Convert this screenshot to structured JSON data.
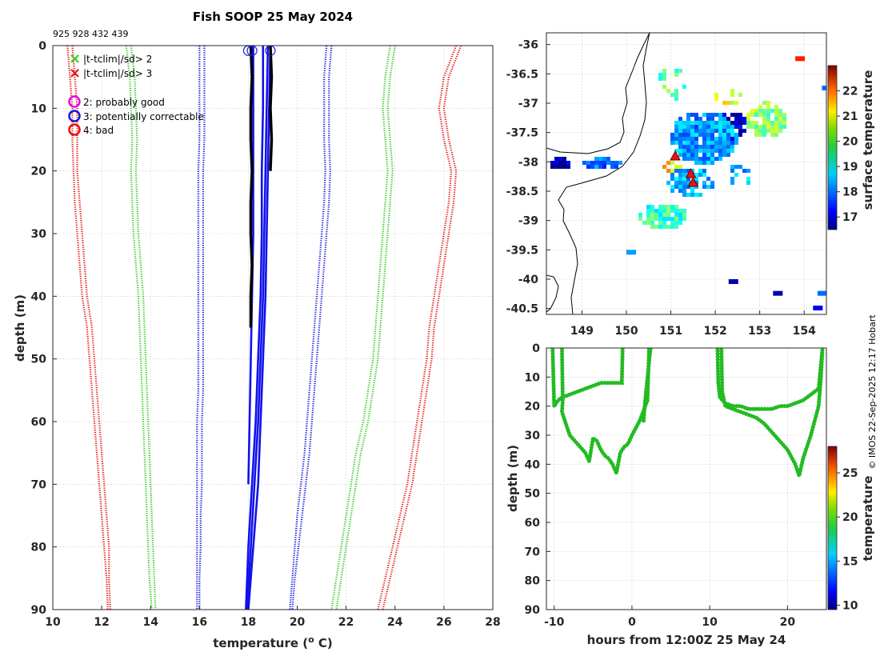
{
  "title": "Fish SOOP 25 May 2024",
  "instrument_ids": "925 928 432 439",
  "credit": "© IMOS 22-Sep-2025 12:17 Hobart",
  "colors": {
    "red": "#e8130f",
    "green": "#33cc22",
    "blue": "#1818e0",
    "black": "#000000",
    "magenta": "#e010e0",
    "profile_blue": "#1111ee",
    "track_green": "#22bb22"
  },
  "legend": {
    "items": [
      {
        "label": "|t-tclim|/sd> 2",
        "marker": "x",
        "color": "#33cc22"
      },
      {
        "label": "|t-tclim|/sd> 3",
        "marker": "x",
        "color": "#e8130f"
      },
      {
        "label": "2: probably good",
        "marker": "o",
        "color": "#e010e0"
      },
      {
        "label": "3: potentially correctable",
        "marker": "o",
        "color": "#1818e0"
      },
      {
        "label": "4: bad",
        "marker": "o",
        "color": "#e8130f"
      }
    ]
  },
  "chart_data": [
    {
      "type": "line",
      "name": "profile",
      "xlabel": "temperature (",
      "xlabel_sup": "o",
      "xlabel_tail": " C)",
      "ylabel": "depth (m)",
      "xlim": [
        10,
        28
      ],
      "ylim": [
        0,
        90
      ],
      "xticks": [
        "10",
        "12",
        "14",
        "16",
        "18",
        "20",
        "22",
        "24",
        "26",
        "28"
      ],
      "yticks": [
        "0",
        "10",
        "20",
        "30",
        "40",
        "50",
        "60",
        "70",
        "80",
        "90"
      ],
      "xtick_values": [
        10,
        12,
        14,
        16,
        18,
        20,
        22,
        24,
        26,
        28
      ],
      "ytick_values": [
        0,
        10,
        20,
        30,
        40,
        50,
        60,
        70,
        80,
        90
      ],
      "climatology_depths": [
        0,
        5,
        10,
        15,
        20,
        25,
        30,
        35,
        40,
        45,
        50,
        55,
        60,
        65,
        70,
        75,
        80,
        85,
        90
      ],
      "series": [
        {
          "name": "clim -3sd",
          "style": "dotted",
          "color": "#e8130f",
          "x": [
            10.8,
            10.9,
            11.0,
            11.0,
            11.0,
            11.1,
            11.2,
            11.3,
            11.4,
            11.6,
            11.7,
            11.8,
            11.9,
            12.0,
            12.1,
            12.2,
            12.3,
            12.3,
            12.35
          ]
        },
        {
          "name": "clim -3sd b",
          "style": "dotted",
          "color": "#e8130f",
          "x": [
            10.6,
            10.7,
            10.8,
            10.8,
            10.85,
            10.9,
            11.0,
            11.1,
            11.2,
            11.4,
            11.5,
            11.6,
            11.7,
            11.8,
            11.9,
            12.0,
            12.1,
            12.2,
            12.25
          ]
        },
        {
          "name": "clim -2sd",
          "style": "dotted",
          "color": "#33cc22",
          "x": [
            13.2,
            13.35,
            13.4,
            13.45,
            13.4,
            13.45,
            13.5,
            13.6,
            13.7,
            13.75,
            13.8,
            13.85,
            13.9,
            13.95,
            14.0,
            14.05,
            14.1,
            14.15,
            14.2
          ]
        },
        {
          "name": "clim -2sd b",
          "style": "dotted",
          "color": "#33cc22",
          "x": [
            13.0,
            13.15,
            13.2,
            13.25,
            13.2,
            13.25,
            13.3,
            13.4,
            13.5,
            13.55,
            13.6,
            13.65,
            13.7,
            13.75,
            13.8,
            13.85,
            13.9,
            13.95,
            14.05
          ]
        },
        {
          "name": "clim -1sd",
          "style": "dotted",
          "color": "#1818e0",
          "x": [
            16.2,
            16.2,
            16.2,
            16.2,
            16.15,
            16.15,
            16.15,
            16.15,
            16.15,
            16.15,
            16.15,
            16.15,
            16.1,
            16.1,
            16.1,
            16.05,
            16.05,
            16.0,
            16.0
          ]
        },
        {
          "name": "clim -1sd b",
          "style": "dotted",
          "color": "#1818e0",
          "x": [
            16.0,
            16.0,
            16.0,
            16.0,
            15.95,
            15.95,
            15.95,
            15.95,
            15.95,
            15.95,
            15.95,
            15.95,
            15.9,
            15.9,
            15.9,
            15.9,
            15.9,
            15.9,
            15.9
          ]
        },
        {
          "name": "clim +1sd",
          "style": "dotted",
          "color": "#1818e0",
          "x": [
            21.4,
            21.3,
            21.3,
            21.3,
            21.35,
            21.3,
            21.2,
            21.1,
            21.0,
            20.9,
            20.8,
            20.7,
            20.6,
            20.5,
            20.35,
            20.2,
            20.05,
            19.9,
            19.8
          ]
        },
        {
          "name": "clim +1sd b",
          "style": "dotted",
          "color": "#1818e0",
          "x": [
            21.2,
            21.1,
            21.1,
            21.1,
            21.15,
            21.1,
            21.0,
            20.9,
            20.8,
            20.7,
            20.6,
            20.5,
            20.4,
            20.3,
            20.15,
            20.0,
            19.9,
            19.8,
            19.7
          ]
        },
        {
          "name": "clim +2sd",
          "style": "dotted",
          "color": "#33cc22",
          "x": [
            24.0,
            23.8,
            23.7,
            23.8,
            23.9,
            23.8,
            23.7,
            23.6,
            23.5,
            23.4,
            23.3,
            23.1,
            22.9,
            22.6,
            22.4,
            22.2,
            22.0,
            21.8,
            21.6
          ]
        },
        {
          "name": "clim +2sd b",
          "style": "dotted",
          "color": "#33cc22",
          "x": [
            23.8,
            23.6,
            23.5,
            23.6,
            23.7,
            23.6,
            23.5,
            23.4,
            23.3,
            23.2,
            23.1,
            22.9,
            22.7,
            22.4,
            22.2,
            22.0,
            21.8,
            21.6,
            21.4
          ]
        },
        {
          "name": "clim +3sd",
          "style": "dotted",
          "color": "#e8130f",
          "x": [
            26.7,
            26.2,
            26.0,
            26.2,
            26.5,
            26.4,
            26.2,
            26.0,
            25.8,
            25.6,
            25.5,
            25.3,
            25.1,
            24.9,
            24.7,
            24.4,
            24.1,
            23.8,
            23.5
          ]
        },
        {
          "name": "clim +3sd b",
          "style": "dotted",
          "color": "#e8130f",
          "x": [
            26.5,
            26.0,
            25.8,
            26.0,
            26.3,
            26.2,
            26.0,
            25.8,
            25.6,
            25.4,
            25.3,
            25.1,
            24.9,
            24.7,
            24.5,
            24.2,
            23.9,
            23.6,
            23.3
          ]
        }
      ],
      "profiles": [
        {
          "name": "925",
          "color": "#1111ee",
          "depth": [
            0,
            10,
            20,
            30,
            40,
            50,
            60,
            70,
            80,
            90
          ],
          "x": [
            18.9,
            18.85,
            18.8,
            18.75,
            18.7,
            18.6,
            18.5,
            18.4,
            18.2,
            18.0
          ]
        },
        {
          "name": "928",
          "color": "#1111ee",
          "depth": [
            0,
            10,
            20,
            30,
            40,
            50,
            60,
            70,
            80,
            90
          ],
          "x": [
            18.8,
            18.75,
            18.7,
            18.65,
            18.6,
            18.5,
            18.4,
            18.25,
            18.1,
            17.95
          ]
        },
        {
          "name": "432",
          "color": "#1111ee",
          "depth": [
            0,
            10,
            20,
            30,
            40,
            50,
            60,
            70,
            80,
            90
          ],
          "x": [
            18.6,
            18.6,
            18.55,
            18.55,
            18.5,
            18.4,
            18.3,
            18.15,
            18.0,
            17.9
          ]
        },
        {
          "name": "439",
          "color": "#1111ee",
          "depth": [
            0,
            10,
            20,
            30,
            40,
            50,
            60,
            70
          ],
          "x": [
            18.2,
            18.2,
            18.2,
            18.2,
            18.15,
            18.1,
            18.05,
            18.0
          ]
        },
        {
          "name": "flagged-a",
          "color": "#000000",
          "depth": [
            0,
            5,
            10,
            15,
            20,
            25,
            30,
            35,
            40,
            45
          ],
          "x": [
            18.1,
            18.15,
            18.1,
            18.1,
            18.15,
            18.1,
            18.1,
            18.15,
            18.1,
            18.1
          ]
        },
        {
          "name": "flagged-b",
          "color": "#000000",
          "depth": [
            0,
            5,
            10,
            15,
            20
          ],
          "x": [
            18.9,
            18.95,
            18.9,
            18.95,
            18.9
          ]
        }
      ],
      "surface_markers": [
        {
          "x": 18.0,
          "depth": 0.8
        },
        {
          "x": 18.15,
          "depth": 0.8
        },
        {
          "x": 18.9,
          "depth": 0.8
        }
      ]
    },
    {
      "type": "heatmap",
      "name": "map",
      "xticks": [
        "149",
        "150",
        "151",
        "152",
        "153",
        "154"
      ],
      "xtick_values": [
        149,
        150,
        151,
        152,
        153,
        154
      ],
      "yticks": [
        "-36",
        "-36.5",
        "-37",
        "-37.5",
        "-38",
        "-38.5",
        "-39",
        "-39.5",
        "-40",
        "-40.5"
      ],
      "ytick_values": [
        -36,
        -36.5,
        -37,
        -37.5,
        -38,
        -38.5,
        -39,
        -39.5,
        -40,
        -40.5
      ],
      "xlim": [
        148.2,
        154.5
      ],
      "ylim": [
        -40.6,
        -35.8
      ],
      "colorbar_label": "surface temperature",
      "colorbar_ticks": [
        "17",
        "18",
        "19",
        "20",
        "21",
        "22"
      ],
      "colorbar_tick_values": [
        17,
        18,
        19,
        20,
        21,
        22
      ],
      "colorbar_range": [
        16.5,
        23
      ],
      "stations": [
        {
          "lon": 151.1,
          "lat": -37.9
        },
        {
          "lon": 151.45,
          "lat": -38.2
        },
        {
          "lon": 151.5,
          "lat": -38.35
        }
      ]
    },
    {
      "type": "scatter",
      "name": "timeseries",
      "xlabel": "hours from 12:00Z 25 May 24",
      "ylabel": "depth (m)",
      "xticks": [
        "-10",
        "0",
        "10",
        "20"
      ],
      "xtick_values": [
        -10,
        0,
        10,
        20
      ],
      "yticks": [
        "0",
        "10",
        "20",
        "30",
        "40",
        "50",
        "60",
        "70",
        "80",
        "90"
      ],
      "ytick_values": [
        0,
        10,
        20,
        30,
        40,
        50,
        60,
        70,
        80,
        90
      ],
      "xlim": [
        -11,
        25
      ],
      "ylim": [
        0,
        90
      ],
      "colorbar_label": "temperature",
      "colorbar_ticks": [
        "10",
        "15",
        "20",
        "25"
      ],
      "colorbar_tick_values": [
        10,
        15,
        20,
        25
      ],
      "colorbar_range": [
        9.5,
        28
      ],
      "tracks": [
        {
          "h": [
            -10.2,
            -10.0,
            -9.5,
            -9,
            -8,
            -7,
            -6,
            -5,
            -4,
            -3,
            -2,
            -1.5,
            -1.3,
            -1.2
          ],
          "d": [
            0,
            20,
            18,
            17,
            16,
            15,
            14,
            13,
            12,
            12,
            12,
            12,
            12,
            0
          ]
        },
        {
          "h": [
            -9,
            -8.9,
            -9,
            -8.5,
            -8,
            -7,
            -6,
            -5.5,
            -5,
            -4.5,
            -4,
            -3.5,
            -3,
            -2.5,
            -2,
            -1.5,
            -1,
            -0.5,
            0,
            1,
            2,
            2.2
          ],
          "d": [
            0,
            18,
            22,
            26,
            30,
            33,
            36,
            39,
            31,
            32,
            35,
            37,
            38,
            40,
            43,
            36,
            34,
            33,
            30,
            25,
            18,
            0
          ]
        },
        {
          "h": [
            1.5,
            1.7,
            2,
            2.2,
            2.4
          ],
          "d": [
            25,
            18,
            10,
            5,
            0
          ]
        },
        {
          "h": [
            11.0,
            11.1,
            11.3,
            12,
            13,
            14,
            15,
            16,
            17,
            18,
            19,
            20,
            21,
            22,
            23,
            24,
            24.5
          ],
          "d": [
            0,
            12,
            17,
            19,
            20,
            20,
            21,
            21,
            21,
            21,
            20,
            20,
            19,
            18,
            16,
            14,
            0
          ]
        },
        {
          "h": [
            11.5,
            11.6,
            12,
            13,
            14,
            15,
            16,
            17,
            18,
            19,
            20,
            21,
            21.5,
            22,
            23,
            24,
            24.3,
            24.5
          ],
          "d": [
            0,
            15,
            20,
            21,
            22,
            23,
            24,
            26,
            29,
            32,
            35,
            40,
            44,
            38,
            30,
            20,
            10,
            0
          ]
        }
      ]
    }
  ]
}
